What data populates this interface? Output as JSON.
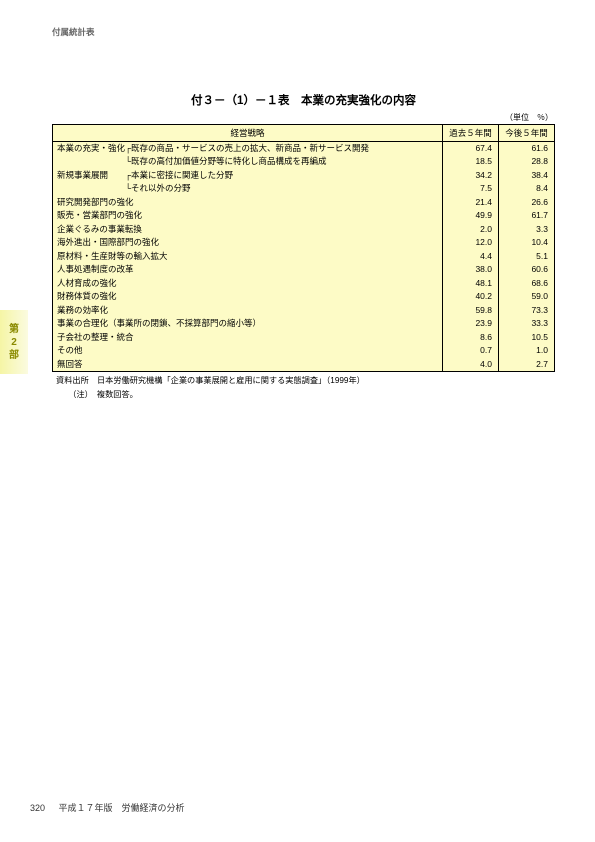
{
  "page": {
    "header_label": "付属統計表",
    "side_tab_lines": [
      "第",
      "2",
      "部"
    ],
    "title": "付３－（1）－１表　本業の充実強化の内容",
    "unit_label": "（単位　％）",
    "footer_page": "320",
    "footer_text": "平成１７年版　労働経済の分析"
  },
  "table": {
    "columns": [
      "経営戦略",
      "過去５年間",
      "今後５年間"
    ],
    "rows": [
      {
        "label": "本業の充実・強化┌既存の商品・サービスの売上の拡大、新商品・新サービス開発",
        "v1": "67.4",
        "v2": "61.6"
      },
      {
        "label": "　　　　　　　　└既存の高付加価値分野等に特化し商品構成を再編成",
        "v1": "18.5",
        "v2": "28.8"
      },
      {
        "label": "新規事業展開　　┌本業に密接に関連した分野",
        "v1": "34.2",
        "v2": "38.4"
      },
      {
        "label": "　　　　　　　　└それ以外の分野",
        "v1": "7.5",
        "v2": "8.4"
      },
      {
        "label": "研究開発部門の強化",
        "v1": "21.4",
        "v2": "26.6"
      },
      {
        "label": "販売・営業部門の強化",
        "v1": "49.9",
        "v2": "61.7"
      },
      {
        "label": "企業ぐるみの事業転換",
        "v1": "2.0",
        "v2": "3.3"
      },
      {
        "label": "海外進出・国際部門の強化",
        "v1": "12.0",
        "v2": "10.4"
      },
      {
        "label": "原材料・生産財等の輸入拡大",
        "v1": "4.4",
        "v2": "5.1"
      },
      {
        "label": "人事処遇制度の改革",
        "v1": "38.0",
        "v2": "60.6"
      },
      {
        "label": "人材育成の強化",
        "v1": "48.1",
        "v2": "68.6"
      },
      {
        "label": "財務体質の強化",
        "v1": "40.2",
        "v2": "59.0"
      },
      {
        "label": "業務の効率化",
        "v1": "59.8",
        "v2": "73.3"
      },
      {
        "label": "事業の合理化（事業所の閉鎖、不採算部門の縮小等）",
        "v1": "23.9",
        "v2": "33.3"
      },
      {
        "label": "子会社の整理・統合",
        "v1": "8.6",
        "v2": "10.5"
      },
      {
        "label": "その他",
        "v1": "0.7",
        "v2": "1.0"
      },
      {
        "label": "無回答",
        "v1": "4.0",
        "v2": "2.7"
      }
    ]
  },
  "source": {
    "line1": "資料出所　日本労働研究機構「企業の事業展開と雇用に関する実態調査」（1999年）",
    "line2": "　　（注）　複数回答。"
  }
}
